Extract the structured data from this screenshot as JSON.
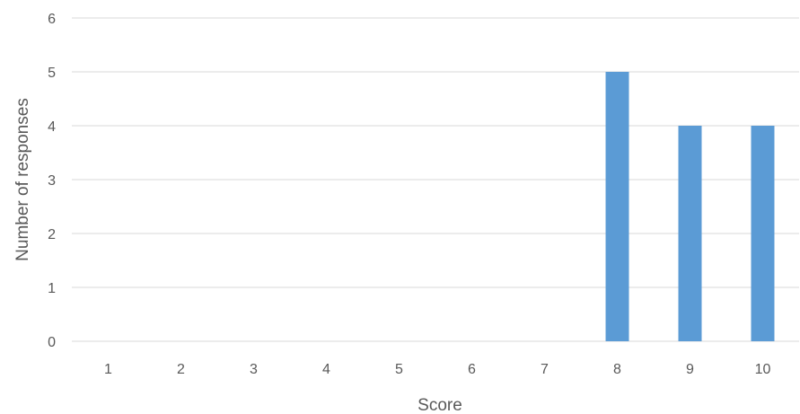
{
  "chart_data": {
    "type": "bar",
    "title": "",
    "xlabel": "Score",
    "ylabel": "Number of responses",
    "categories": [
      "1",
      "2",
      "3",
      "4",
      "5",
      "6",
      "7",
      "8",
      "9",
      "10"
    ],
    "values": [
      0,
      0,
      0,
      0,
      0,
      0,
      0,
      5,
      4,
      4
    ],
    "ylim": [
      0,
      6
    ],
    "yticks": [
      "0",
      "1",
      "2",
      "3",
      "4",
      "5",
      "6"
    ],
    "grid": true,
    "legend": "none",
    "bar_color": "#5b9bd5"
  }
}
